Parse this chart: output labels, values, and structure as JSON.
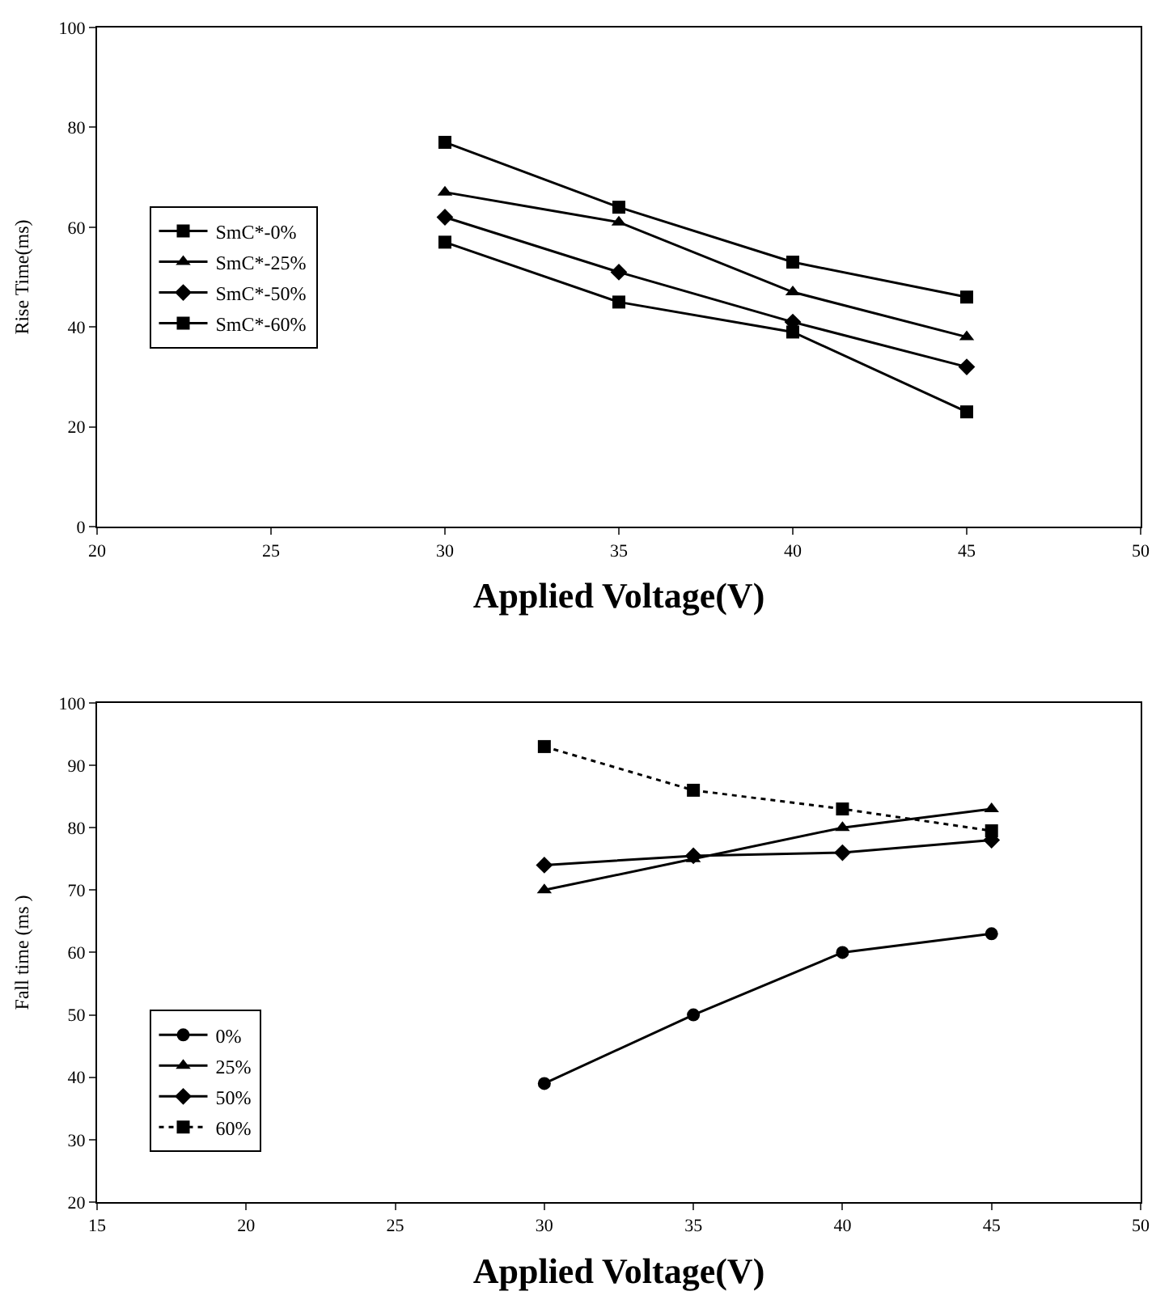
{
  "chart_data": [
    {
      "type": "line",
      "xlabel": "Applied Voltage(V)",
      "ylabel": "Rise Time(ms)",
      "x": [
        30,
        35,
        40,
        45
      ],
      "xlim": [
        20,
        50
      ],
      "xticks": [
        20,
        25,
        30,
        35,
        40,
        45,
        50
      ],
      "ylim": [
        0,
        100
      ],
      "yticks": [
        0,
        20,
        40,
        60,
        80,
        100
      ],
      "legend": "left",
      "series": [
        {
          "name": "SmC*-0%",
          "color": "#000000",
          "marker": "square",
          "line_style": "solid",
          "values": [
            77,
            64,
            53,
            46
          ]
        },
        {
          "name": "SmC*-25%",
          "color": "#000000",
          "marker": "triangle",
          "line_style": "solid",
          "values": [
            67,
            61,
            47,
            38
          ]
        },
        {
          "name": "SmC*-50%",
          "color": "#000000",
          "marker": "diamond",
          "line_style": "solid",
          "values": [
            62,
            51,
            41,
            32
          ]
        },
        {
          "name": "SmC*-60%",
          "color": "#000000",
          "marker": "square",
          "line_style": "solid",
          "values": [
            57,
            45,
            39,
            23
          ]
        }
      ]
    },
    {
      "type": "line",
      "xlabel": "Applied Voltage(V)",
      "ylabel": "Fall time (ms )",
      "x": [
        30,
        35,
        40,
        45
      ],
      "xlim": [
        15,
        50
      ],
      "xticks": [
        15,
        20,
        25,
        30,
        35,
        40,
        45,
        50
      ],
      "ylim": [
        20,
        100
      ],
      "yticks": [
        20,
        30,
        40,
        50,
        60,
        70,
        80,
        90,
        100
      ],
      "legend": "bottom left",
      "series": [
        {
          "name": "0%",
          "color": "#000000",
          "marker": "circle",
          "line_style": "solid",
          "values": [
            39,
            50,
            60,
            63
          ]
        },
        {
          "name": "25%",
          "color": "#000000",
          "marker": "triangle",
          "line_style": "solid",
          "values": [
            70,
            75,
            80,
            83
          ]
        },
        {
          "name": "50%",
          "color": "#000000",
          "marker": "diamond",
          "line_style": "solid",
          "values": [
            74,
            75.5,
            76,
            78
          ]
        },
        {
          "name": "60%",
          "color": "#000000",
          "marker": "square",
          "line_style": "dotted",
          "values": [
            93,
            86,
            83,
            79.5
          ]
        }
      ]
    }
  ]
}
